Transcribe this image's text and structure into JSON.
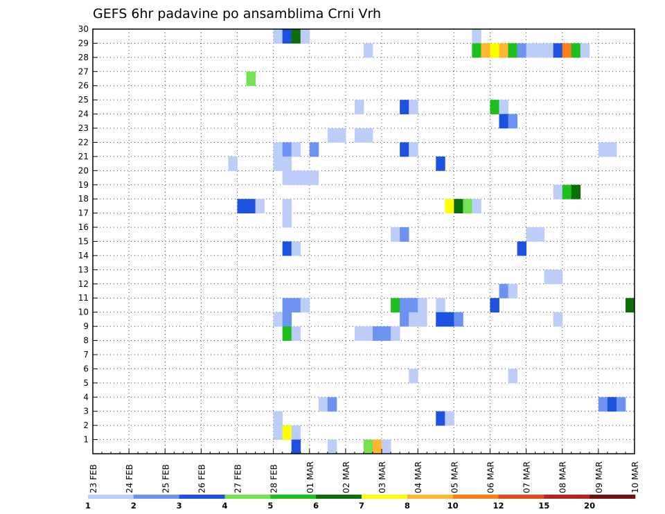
{
  "chart_data": {
    "type": "heatmap",
    "title": "GEFS 6hr padavine po ansamblima Crni Vrh",
    "xlabel": "",
    "ylabel": "",
    "x_ticks": [
      "23 FEB",
      "24 FEB",
      "25 FEB",
      "26 FEB",
      "27 FEB",
      "28 FEB",
      "01 MAR",
      "02 MAR",
      "03 MAR",
      "04 MAR",
      "05 MAR",
      "06 MAR",
      "07 MAR",
      "08 MAR",
      "09 MAR",
      "10 MAR"
    ],
    "x_range_days": [
      0,
      15
    ],
    "y_ticks": [
      "1",
      "2",
      "3",
      "4",
      "5",
      "6",
      "7",
      "8",
      "9",
      "10",
      "11",
      "12",
      "13",
      "14",
      "15",
      "16",
      "17",
      "18",
      "19",
      "20",
      "21",
      "22",
      "23",
      "24",
      "25",
      "26",
      "27",
      "28",
      "29",
      "30"
    ],
    "y_range": [
      0,
      30
    ],
    "grid": true,
    "colorbar": {
      "labels": [
        "1",
        "2",
        "3",
        "4",
        "5",
        "6",
        "7",
        "8",
        "10",
        "12",
        "15",
        "20"
      ],
      "colors": [
        "#bccdf9",
        "#6c93f1",
        "#1d52e0",
        "#75e350",
        "#1dbf1d",
        "#0b6e0b",
        "#ffff00",
        "#ffb632",
        "#ff7e1c",
        "#e24a1d",
        "#b8231f",
        "#701010"
      ]
    },
    "cells": [
      {
        "d": 5.0,
        "m": 30,
        "c": 0
      },
      {
        "d": 5.25,
        "m": 30,
        "c": 2
      },
      {
        "d": 5.5,
        "m": 30,
        "c": 5
      },
      {
        "d": 5.75,
        "m": 30,
        "c": 0
      },
      {
        "d": 10.5,
        "m": 30,
        "c": 0
      },
      {
        "d": 7.5,
        "m": 29,
        "c": 0
      },
      {
        "d": 10.5,
        "m": 29,
        "c": 4
      },
      {
        "d": 10.75,
        "m": 29,
        "c": 7
      },
      {
        "d": 11.0,
        "m": 29,
        "c": 6
      },
      {
        "d": 11.25,
        "m": 29,
        "c": 7
      },
      {
        "d": 11.5,
        "m": 29,
        "c": 4
      },
      {
        "d": 11.75,
        "m": 29,
        "c": 1
      },
      {
        "d": 12.0,
        "m": 29,
        "c": 0
      },
      {
        "d": 12.25,
        "m": 29,
        "c": 0
      },
      {
        "d": 12.5,
        "m": 29,
        "c": 0
      },
      {
        "d": 12.75,
        "m": 29,
        "c": 2
      },
      {
        "d": 13.0,
        "m": 29,
        "c": 8
      },
      {
        "d": 13.25,
        "m": 29,
        "c": 4
      },
      {
        "d": 13.5,
        "m": 29,
        "c": 0
      },
      {
        "d": 4.25,
        "m": 27,
        "c": 3
      },
      {
        "d": 7.25,
        "m": 25,
        "c": 0
      },
      {
        "d": 8.5,
        "m": 25,
        "c": 2
      },
      {
        "d": 8.75,
        "m": 25,
        "c": 0
      },
      {
        "d": 11.0,
        "m": 25,
        "c": 4
      },
      {
        "d": 11.25,
        "m": 25,
        "c": 0
      },
      {
        "d": 11.25,
        "m": 24,
        "c": 2
      },
      {
        "d": 11.5,
        "m": 24,
        "c": 1
      },
      {
        "d": 6.5,
        "m": 23,
        "c": 0
      },
      {
        "d": 6.75,
        "m": 23,
        "c": 0
      },
      {
        "d": 7.25,
        "m": 23,
        "c": 0
      },
      {
        "d": 7.5,
        "m": 23,
        "c": 0
      },
      {
        "d": 5.0,
        "m": 22,
        "c": 0
      },
      {
        "d": 5.25,
        "m": 22,
        "c": 1
      },
      {
        "d": 5.5,
        "m": 22,
        "c": 0
      },
      {
        "d": 6.0,
        "m": 22,
        "c": 1
      },
      {
        "d": 8.5,
        "m": 22,
        "c": 2
      },
      {
        "d": 8.75,
        "m": 22,
        "c": 0
      },
      {
        "d": 14.0,
        "m": 22,
        "c": 0
      },
      {
        "d": 14.25,
        "m": 22,
        "c": 0
      },
      {
        "d": 3.75,
        "m": 21,
        "c": 0
      },
      {
        "d": 5.0,
        "m": 21,
        "c": 0
      },
      {
        "d": 5.25,
        "m": 21,
        "c": 0
      },
      {
        "d": 9.5,
        "m": 21,
        "c": 2
      },
      {
        "d": 5.25,
        "m": 20,
        "c": 0
      },
      {
        "d": 5.5,
        "m": 20,
        "c": 0
      },
      {
        "d": 5.75,
        "m": 20,
        "c": 0
      },
      {
        "d": 6.0,
        "m": 20,
        "c": 0
      },
      {
        "d": 12.75,
        "m": 19,
        "c": 0
      },
      {
        "d": 13.0,
        "m": 19,
        "c": 4
      },
      {
        "d": 13.25,
        "m": 19,
        "c": 5
      },
      {
        "d": 4.0,
        "m": 18,
        "c": 2
      },
      {
        "d": 4.25,
        "m": 18,
        "c": 2
      },
      {
        "d": 4.5,
        "m": 18,
        "c": 0
      },
      {
        "d": 5.25,
        "m": 18,
        "c": 0
      },
      {
        "d": 9.75,
        "m": 18,
        "c": 6
      },
      {
        "d": 10.0,
        "m": 18,
        "c": 5
      },
      {
        "d": 10.25,
        "m": 18,
        "c": 3
      },
      {
        "d": 10.5,
        "m": 18,
        "c": 0
      },
      {
        "d": 5.25,
        "m": 17,
        "c": 0
      },
      {
        "d": 8.25,
        "m": 16,
        "c": 0
      },
      {
        "d": 8.5,
        "m": 16,
        "c": 1
      },
      {
        "d": 12.0,
        "m": 16,
        "c": 0
      },
      {
        "d": 12.25,
        "m": 16,
        "c": 0
      },
      {
        "d": 5.25,
        "m": 15,
        "c": 2
      },
      {
        "d": 5.5,
        "m": 15,
        "c": 0
      },
      {
        "d": 11.75,
        "m": 15,
        "c": 2
      },
      {
        "d": 12.5,
        "m": 13,
        "c": 0
      },
      {
        "d": 12.75,
        "m": 13,
        "c": 0
      },
      {
        "d": 11.25,
        "m": 12,
        "c": 1
      },
      {
        "d": 11.5,
        "m": 12,
        "c": 0
      },
      {
        "d": 5.25,
        "m": 11,
        "c": 1
      },
      {
        "d": 5.5,
        "m": 11,
        "c": 1
      },
      {
        "d": 5.75,
        "m": 11,
        "c": 0
      },
      {
        "d": 8.25,
        "m": 11,
        "c": 4
      },
      {
        "d": 8.5,
        "m": 11,
        "c": 1
      },
      {
        "d": 8.75,
        "m": 11,
        "c": 1
      },
      {
        "d": 9.0,
        "m": 11,
        "c": 0
      },
      {
        "d": 9.5,
        "m": 11,
        "c": 0
      },
      {
        "d": 11.0,
        "m": 11,
        "c": 2
      },
      {
        "d": 14.75,
        "m": 11,
        "c": 5
      },
      {
        "d": 5.0,
        "m": 10,
        "c": 0
      },
      {
        "d": 5.25,
        "m": 10,
        "c": 1
      },
      {
        "d": 8.5,
        "m": 10,
        "c": 1
      },
      {
        "d": 8.75,
        "m": 10,
        "c": 0
      },
      {
        "d": 9.0,
        "m": 10,
        "c": 0
      },
      {
        "d": 9.5,
        "m": 10,
        "c": 2
      },
      {
        "d": 9.75,
        "m": 10,
        "c": 2
      },
      {
        "d": 10.0,
        "m": 10,
        "c": 1
      },
      {
        "d": 12.75,
        "m": 10,
        "c": 0
      },
      {
        "d": 5.25,
        "m": 9,
        "c": 4
      },
      {
        "d": 5.5,
        "m": 9,
        "c": 0
      },
      {
        "d": 7.25,
        "m": 9,
        "c": 0
      },
      {
        "d": 7.5,
        "m": 9,
        "c": 0
      },
      {
        "d": 7.75,
        "m": 9,
        "c": 1
      },
      {
        "d": 8.0,
        "m": 9,
        "c": 1
      },
      {
        "d": 8.25,
        "m": 9,
        "c": 0
      },
      {
        "d": 8.75,
        "m": 6,
        "c": 0
      },
      {
        "d": 11.5,
        "m": 6,
        "c": 0
      },
      {
        "d": 6.25,
        "m": 4,
        "c": 0
      },
      {
        "d": 6.5,
        "m": 4,
        "c": 1
      },
      {
        "d": 14.0,
        "m": 4,
        "c": 1
      },
      {
        "d": 14.25,
        "m": 4,
        "c": 2
      },
      {
        "d": 14.5,
        "m": 4,
        "c": 1
      },
      {
        "d": 5.0,
        "m": 3,
        "c": 0
      },
      {
        "d": 9.5,
        "m": 3,
        "c": 2
      },
      {
        "d": 9.75,
        "m": 3,
        "c": 0
      },
      {
        "d": 5.0,
        "m": 2,
        "c": 0
      },
      {
        "d": 5.25,
        "m": 2,
        "c": 6
      },
      {
        "d": 5.5,
        "m": 2,
        "c": 0
      },
      {
        "d": 5.5,
        "m": 1,
        "c": 2
      },
      {
        "d": 6.5,
        "m": 1,
        "c": 0
      },
      {
        "d": 7.5,
        "m": 1,
        "c": 3
      },
      {
        "d": 7.75,
        "m": 1,
        "c": 7
      },
      {
        "d": 8.0,
        "m": 1,
        "c": 0
      }
    ]
  }
}
